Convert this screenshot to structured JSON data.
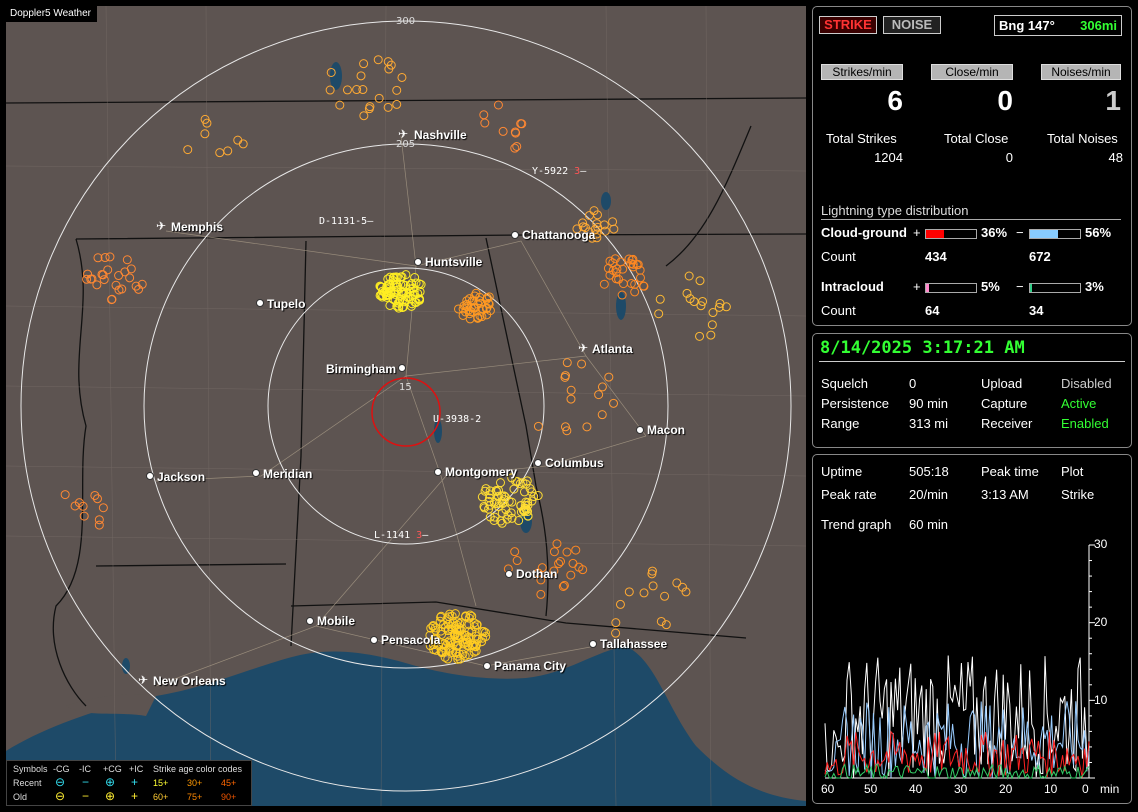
{
  "app": {
    "title": "Doppler5 Weather"
  },
  "map": {
    "ring_labels": [
      "300",
      "205",
      "15"
    ],
    "cities": [
      {
        "name": "Nashville",
        "airport": true
      },
      {
        "name": "Memphis",
        "airport": true
      },
      {
        "name": "Chattanooga",
        "airport": false
      },
      {
        "name": "Huntsville",
        "airport": false
      },
      {
        "name": "Tupelo",
        "airport": false
      },
      {
        "name": "Atlanta",
        "airport": true
      },
      {
        "name": "Birmingham",
        "airport": false
      },
      {
        "name": "Macon",
        "airport": false
      },
      {
        "name": "Jackson",
        "airport": false
      },
      {
        "name": "Meridian",
        "airport": false
      },
      {
        "name": "Montgomery",
        "airport": false
      },
      {
        "name": "Columbus",
        "airport": false
      },
      {
        "name": "Dothan",
        "airport": false
      },
      {
        "name": "Mobile",
        "airport": false
      },
      {
        "name": "Pensacola",
        "airport": false
      },
      {
        "name": "Tallahassee",
        "airport": false
      },
      {
        "name": "Panama City",
        "airport": false
      },
      {
        "name": "New Orleans",
        "airport": true
      }
    ],
    "storm_ids": [
      "Y-5922",
      "D-1131",
      "U-3938",
      "L-1141"
    ],
    "storm_suffixes": [
      "3",
      "5",
      "2",
      "3"
    ]
  },
  "legend": {
    "header": [
      "Symbols",
      "-CG",
      "-IC",
      "+CG",
      "+IC",
      "Strike age color codes"
    ],
    "recent_label": "Recent",
    "old_label": "Old",
    "recent_ages": [
      "15+",
      "30+",
      "45+"
    ],
    "old_ages": [
      "60+",
      "75+",
      "90+"
    ],
    "age_colors": [
      "#ffff33",
      "#ff9900",
      "#ff6600",
      "#ffcc33",
      "#ff8800",
      "#ee5500"
    ]
  },
  "status": {
    "strike_button": "STRIKE",
    "noise_button": "NOISE",
    "bearing_label": "Bng 147°",
    "range_label": "306mi",
    "strikes_per_min_label": "Strikes/min",
    "close_per_min_label": "Close/min",
    "noises_per_min_label": "Noises/min",
    "strikes_per_min": "6",
    "close_per_min": "0",
    "noises_per_min": "1",
    "total_strikes_label": "Total Strikes",
    "total_close_label": "Total Close",
    "total_noises_label": "Total Noises",
    "total_strikes": "1204",
    "total_close": "0",
    "total_noises": "48",
    "distribution_title": "Lightning type distribution",
    "cloud_ground_label": "Cloud-ground",
    "intracloud_label": "Intracloud",
    "count_label": "Count",
    "plus": "+",
    "minus": "−",
    "cg_pos_pct": "36%",
    "cg_pos_frac": 0.36,
    "cg_pos_count": "434",
    "cg_neg_pct": "56%",
    "cg_neg_frac": 0.56,
    "cg_neg_count": "672",
    "ic_pos_pct": "5%",
    "ic_pos_frac": 0.05,
    "ic_pos_count": "64",
    "ic_neg_pct": "3%",
    "ic_neg_frac": 0.03,
    "ic_neg_count": "34",
    "colors": {
      "cg_pos": "#ff0000",
      "cg_neg": "#88ccff",
      "ic_pos": "#ff88cc",
      "ic_neg": "#33cc88"
    }
  },
  "info": {
    "datetime": "8/14/2025 3:17:21 AM",
    "squelch_label": "Squelch",
    "squelch": "0",
    "upload_label": "Upload",
    "upload": "Disabled",
    "persistence_label": "Persistence",
    "persistence": "90 min",
    "capture_label": "Capture",
    "capture": "Active",
    "range_label": "Range",
    "range": "313 mi",
    "receiver_label": "Receiver",
    "receiver": "Enabled"
  },
  "trend": {
    "uptime_label": "Uptime",
    "uptime": "505:18",
    "peak_time_label": "Peak time",
    "peak_time": "3:13 AM",
    "plot_label": "Plot",
    "peak_rate_label": "Peak rate",
    "peak_rate": "20/min",
    "plot_value": "Strike",
    "graph_label": "Trend graph",
    "graph_value": "60 min",
    "y_ticks": [
      "30",
      "20",
      "10"
    ],
    "x_ticks": [
      "60",
      "50",
      "40",
      "30",
      "20",
      "10",
      "0"
    ],
    "x_unit": "min"
  }
}
